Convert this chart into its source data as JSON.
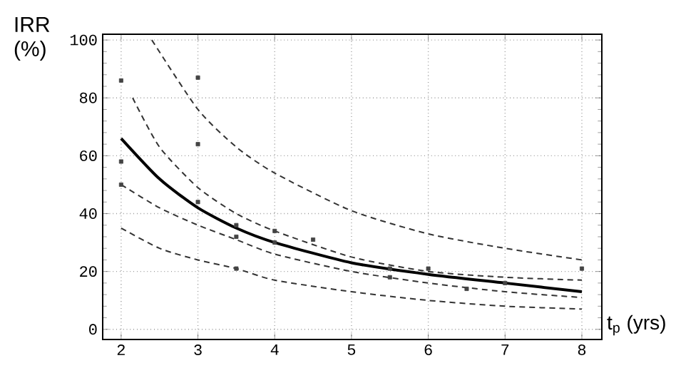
{
  "chart_data": {
    "type": "line",
    "xlabel": "t$_{p}$ (yrs)",
    "ylabel": "IRR (%)",
    "xlim": [
      1.76,
      8.26
    ],
    "ylim": [
      -3.5,
      102
    ],
    "xticks": [
      2,
      3,
      4,
      5,
      6,
      7,
      8
    ],
    "yticks": [
      0,
      20,
      40,
      60,
      80,
      100
    ],
    "grid": true,
    "series": [
      {
        "type": "line",
        "line_style": "dashed",
        "color": "#333333",
        "x": [
          2.4,
          3,
          3.5,
          4,
          5,
          6,
          7,
          8
        ],
        "values": [
          100,
          76,
          63,
          54,
          41,
          33,
          28,
          24
        ]
      },
      {
        "type": "line",
        "line_style": "dashed",
        "color": "#333333",
        "x": [
          2.15,
          2.5,
          3,
          3.5,
          4,
          5,
          6,
          7,
          8
        ],
        "values": [
          80,
          63,
          49,
          40,
          34,
          25,
          20,
          18,
          17
        ]
      },
      {
        "type": "line",
        "line_style": "solid",
        "color": "#000000",
        "x": [
          2,
          2.5,
          3,
          3.5,
          4,
          5,
          6,
          7,
          8
        ],
        "values": [
          66,
          52,
          42,
          35,
          30,
          23,
          19,
          16,
          13
        ]
      },
      {
        "type": "line",
        "line_style": "dashed",
        "color": "#333333",
        "x": [
          2,
          2.5,
          3,
          3.5,
          4,
          5,
          6,
          7,
          8
        ],
        "values": [
          50,
          42,
          36,
          31,
          26,
          20,
          16,
          13,
          11
        ]
      },
      {
        "type": "line",
        "line_style": "dashed",
        "color": "#333333",
        "x": [
          2,
          2.5,
          3,
          3.5,
          4,
          5,
          6,
          7,
          8
        ],
        "values": [
          35,
          28,
          24,
          21,
          17,
          13,
          10,
          8,
          7
        ]
      },
      {
        "type": "scatter",
        "marker": "square",
        "color": "#444444",
        "x": [
          2,
          2,
          2,
          3,
          3,
          3,
          3.5,
          3.5,
          3.5,
          4,
          4,
          4.5,
          5.5,
          5.5,
          6,
          6.5,
          7,
          8
        ],
        "values": [
          86,
          58,
          50,
          87,
          64,
          44,
          36,
          32,
          21,
          34,
          30,
          31,
          21,
          18,
          21,
          14,
          16,
          21
        ]
      }
    ]
  }
}
